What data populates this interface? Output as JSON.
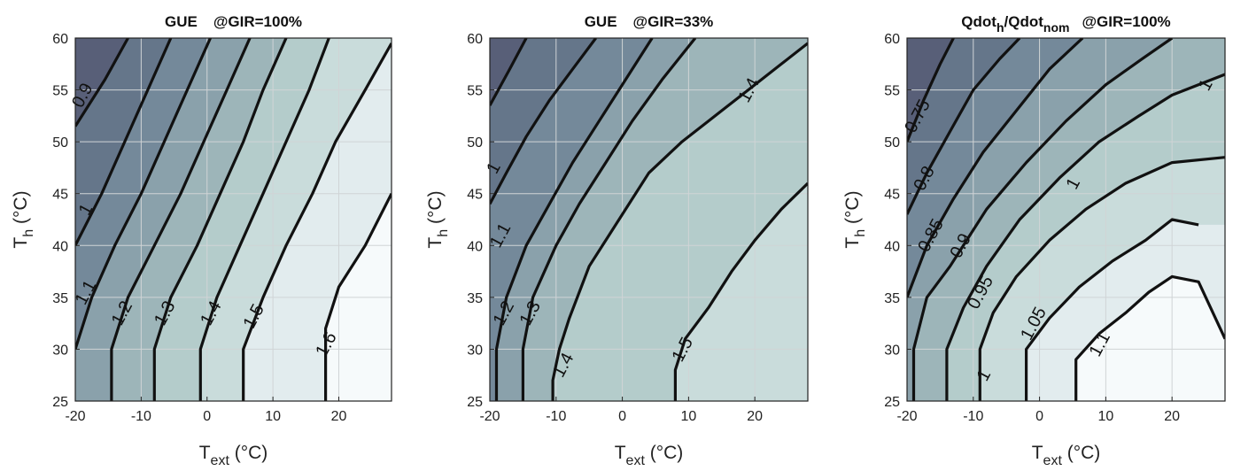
{
  "colors": {
    "levels": [
      "#585f78",
      "#65768a",
      "#74899a",
      "#8aa1ab",
      "#9db5b9",
      "#b4cccb",
      "#c9dcdb",
      "#e2ecee",
      "#f6fafb",
      "#ffffff"
    ],
    "contour_line": "#111111",
    "grid": "#d0d4d6"
  },
  "chart_data": [
    {
      "type": "contour",
      "title": "GUE",
      "title_condition": "@GIR=100%",
      "xlabel_main": "T",
      "xlabel_sub": "ext",
      "xlabel_unit": " (°C)",
      "ylabel_main": "T",
      "ylabel_sub": "h",
      "ylabel_unit": " (°C)",
      "xlim": [
        -20,
        28
      ],
      "ylim": [
        25,
        60
      ],
      "xticks": [
        "-20",
        "-10",
        "0",
        "10",
        "20"
      ],
      "yticks": [
        "25",
        "30",
        "35",
        "40",
        "45",
        "50",
        "55",
        "60"
      ],
      "grid": true,
      "contours": [
        {
          "label": "0.9",
          "points": [
            [
              -20,
              51.5
            ],
            [
              -15.5,
              56
            ],
            [
              -12,
              60
            ]
          ],
          "label_at": [
            -19,
            54.5
          ]
        },
        {
          "label": "1",
          "points": [
            [
              -20,
              40
            ],
            [
              -16,
              45
            ],
            [
              -12.5,
              50
            ],
            [
              -9,
              55
            ],
            [
              -5.5,
              60
            ]
          ],
          "label_at": [
            -18.5,
            43.5
          ]
        },
        {
          "label": "1.1",
          "points": [
            [
              -20,
              30
            ],
            [
              -17.5,
              35
            ],
            [
              -14,
              40
            ],
            [
              -10,
              45
            ],
            [
              -6.5,
              50
            ],
            [
              -3,
              55
            ],
            [
              0.5,
              60
            ]
          ],
          "label_at": [
            -18.5,
            35.5
          ]
        },
        {
          "label": "1.2",
          "points": [
            [
              -14.5,
              25
            ],
            [
              -14.5,
              30
            ],
            [
              -12,
              35
            ],
            [
              -8,
              40
            ],
            [
              -4,
              45
            ],
            [
              -0.5,
              50
            ],
            [
              3,
              55
            ],
            [
              6.5,
              60
            ]
          ],
          "label_at": [
            -13,
            33.5
          ]
        },
        {
          "label": "1.3",
          "points": [
            [
              -8,
              25
            ],
            [
              -8,
              30
            ],
            [
              -5.5,
              35
            ],
            [
              -1.5,
              40
            ],
            [
              2,
              45
            ],
            [
              5.5,
              50
            ],
            [
              8.5,
              55
            ],
            [
              12,
              60
            ]
          ],
          "label_at": [
            -6.5,
            33.5
          ]
        },
        {
          "label": "1.4",
          "points": [
            [
              -1,
              25
            ],
            [
              -1,
              30
            ],
            [
              1.5,
              35
            ],
            [
              5,
              40
            ],
            [
              8.5,
              45
            ],
            [
              12,
              50
            ],
            [
              15.5,
              55
            ],
            [
              18.5,
              60
            ]
          ],
          "label_at": [
            0.5,
            33.5
          ]
        },
        {
          "label": "1.5",
          "points": [
            [
              5.5,
              25
            ],
            [
              5.5,
              30
            ],
            [
              8.5,
              35
            ],
            [
              12,
              40
            ],
            [
              16,
              45
            ],
            [
              19.5,
              50
            ],
            [
              24,
              55
            ],
            [
              28,
              59.5
            ]
          ],
          "label_at": [
            7,
            33.2
          ]
        },
        {
          "label": "1.6",
          "points": [
            [
              18,
              25
            ],
            [
              18,
              28.5
            ],
            [
              18,
              32
            ],
            [
              20,
              36
            ],
            [
              24,
              40
            ],
            [
              28,
              45
            ]
          ],
          "label_at": [
            18,
            30.5
          ]
        }
      ]
    },
    {
      "type": "contour",
      "title": "GUE",
      "title_condition": "@GIR=33%",
      "xlabel_main": "T",
      "xlabel_sub": "ext",
      "xlabel_unit": " (°C)",
      "ylabel_main": "T",
      "ylabel_sub": "h",
      "ylabel_unit": " (°C)",
      "xlim": [
        -20,
        28
      ],
      "ylim": [
        25,
        60
      ],
      "xticks": [
        "-20",
        "-10",
        "0",
        "10",
        "20"
      ],
      "yticks": [
        "25",
        "30",
        "35",
        "40",
        "45",
        "50",
        "55",
        "60"
      ],
      "grid": true,
      "contours": [
        {
          "label": "1",
          "points": [
            [
              -20,
              53.5
            ],
            [
              -17,
              57
            ],
            [
              -14.5,
              60
            ]
          ],
          "label_at": [
            -19.5,
            47.5
          ]
        },
        {
          "label": "1.1",
          "points": [
            [
              -20,
              44
            ],
            [
              -17.5,
              47
            ],
            [
              -14.5,
              50.5
            ],
            [
              -11,
              54
            ],
            [
              -7.5,
              57
            ],
            [
              -4,
              60
            ]
          ],
          "label_at": [
            -18.5,
            41
          ]
        },
        {
          "label": "1.2",
          "points": [
            [
              -19,
              25
            ],
            [
              -19,
              30
            ],
            [
              -17.5,
              35
            ],
            [
              -14.5,
              40
            ],
            [
              -11,
              44
            ],
            [
              -7.5,
              48
            ],
            [
              -3.5,
              52
            ],
            [
              0.5,
              56
            ],
            [
              4.5,
              60
            ]
          ],
          "label_at": [
            -18,
            33.5
          ]
        },
        {
          "label": "1.3",
          "points": [
            [
              -15,
              25
            ],
            [
              -15,
              30
            ],
            [
              -13.5,
              35
            ],
            [
              -10,
              40
            ],
            [
              -6.5,
              44
            ],
            [
              -2.5,
              48
            ],
            [
              1.5,
              52
            ],
            [
              6,
              56
            ],
            [
              11,
              60
            ]
          ],
          "label_at": [
            -14,
            33.5
          ]
        },
        {
          "label": "1.4",
          "points": [
            [
              -10.5,
              25
            ],
            [
              -10.5,
              27
            ],
            [
              -9.5,
              30
            ],
            [
              -8,
              33
            ],
            [
              -5,
              38
            ],
            [
              -2,
              41
            ],
            [
              1,
              44
            ],
            [
              4,
              47
            ],
            [
              9,
              50
            ],
            [
              13,
              52
            ],
            [
              19,
              55
            ],
            [
              24,
              57.5
            ],
            [
              28,
              59.5
            ]
          ],
          "label_at": [
            -9,
            28.5
          ]
        },
        {
          "label": "1.5",
          "points": [
            [
              8,
              25
            ],
            [
              8,
              28
            ],
            [
              9.5,
              31
            ],
            [
              13,
              34
            ],
            [
              16.5,
              37.5
            ],
            [
              20,
              40.5
            ],
            [
              24,
              43.5
            ],
            [
              28,
              46
            ]
          ],
          "label_at": [
            9,
            30
          ]
        }
      ],
      "extra_labels": [
        {
          "label": "1.4",
          "at": [
            19,
            55
          ]
        }
      ]
    },
    {
      "type": "contour",
      "title": "Qdot",
      "title_sub_1": "h",
      "title_mid": "/Qdot",
      "title_sub_2": "nom",
      "title_condition": "@GIR=100%",
      "xlabel_main": "T",
      "xlabel_sub": "ext",
      "xlabel_unit": " (°C)",
      "ylabel_main": "T",
      "ylabel_sub": "h",
      "ylabel_unit": " (°C)",
      "xlim": [
        -20,
        28
      ],
      "ylim": [
        25,
        60
      ],
      "xticks": [
        "-20",
        "-10",
        "0",
        "10",
        "20"
      ],
      "yticks": [
        "25",
        "30",
        "35",
        "40",
        "45",
        "50",
        "55",
        "60"
      ],
      "grid": true,
      "contours": [
        {
          "label": "0.75",
          "points": [
            [
              -20,
              50
            ],
            [
              -17.5,
              54
            ],
            [
              -15,
              57.5
            ],
            [
              -13,
              60
            ]
          ],
          "label_at": [
            -18.5,
            52.5
          ]
        },
        {
          "label": "0.8",
          "points": [
            [
              -20,
              43
            ],
            [
              -17,
              47
            ],
            [
              -13.5,
              51
            ],
            [
              -10,
              55
            ],
            [
              -6,
              58
            ],
            [
              -3,
              60
            ]
          ],
          "label_at": [
            -17.5,
            46.5
          ]
        },
        {
          "label": "0.85",
          "points": [
            [
              -20,
              35
            ],
            [
              -17,
              40
            ],
            [
              -13,
              44.5
            ],
            [
              -8.5,
              49
            ],
            [
              -3.5,
              53
            ],
            [
              1.5,
              57
            ],
            [
              6.5,
              60
            ]
          ],
          "label_at": [
            -16.5,
            41
          ]
        },
        {
          "label": "0.9",
          "points": [
            [
              -19,
              25
            ],
            [
              -19,
              30
            ],
            [
              -17,
              35
            ],
            [
              -13.5,
              38
            ],
            [
              -8,
              43.5
            ],
            [
              -2,
              48
            ],
            [
              4,
              52
            ],
            [
              10,
              55.5
            ],
            [
              15.5,
              58
            ],
            [
              20,
              60
            ]
          ],
          "label_at": [
            -12,
            40
          ]
        },
        {
          "label": "0.95",
          "points": [
            [
              -14,
              25
            ],
            [
              -14,
              30
            ],
            [
              -11.5,
              34
            ],
            [
              -8,
              38
            ],
            [
              -3,
              42.5
            ],
            [
              3,
              46.5
            ],
            [
              9,
              50
            ],
            [
              15,
              52.5
            ],
            [
              20,
              54.5
            ],
            [
              28,
              56.5
            ]
          ],
          "label_at": [
            -9,
            35.5
          ]
        },
        {
          "label": "1",
          "points": [
            [
              -9,
              25
            ],
            [
              -9,
              30
            ],
            [
              -7,
              33.5
            ],
            [
              -3.5,
              37
            ],
            [
              1.5,
              40.5
            ],
            [
              7,
              43.5
            ],
            [
              13,
              46
            ],
            [
              20,
              48
            ],
            [
              28,
              48.5
            ]
          ],
          "label_at": [
            5,
            46
          ],
          "second_label": true
        },
        {
          "label": "1.05",
          "points": [
            [
              -2,
              25
            ],
            [
              -2,
              30
            ],
            [
              1.5,
              33
            ],
            [
              6,
              36
            ],
            [
              11,
              38.5
            ],
            [
              16,
              40.5
            ],
            [
              20,
              42.5
            ],
            [
              24,
              42
            ]
          ],
          "label_at": [
            -1,
            32.5
          ]
        },
        {
          "label": "1.1",
          "points": [
            [
              5.5,
              25
            ],
            [
              5.5,
              29
            ],
            [
              9,
              31.5
            ],
            [
              13,
              33.5
            ],
            [
              16.5,
              35.5
            ],
            [
              20,
              37
            ],
            [
              24,
              36.5
            ],
            [
              28,
              31
            ]
          ],
          "label_at": [
            9,
            30.5
          ]
        }
      ],
      "extra_labels": [
        {
          "label": "1",
          "at": [
            -8.5,
            27.5
          ]
        },
        {
          "label": "1",
          "at": [
            25,
            55.5
          ]
        }
      ]
    }
  ]
}
